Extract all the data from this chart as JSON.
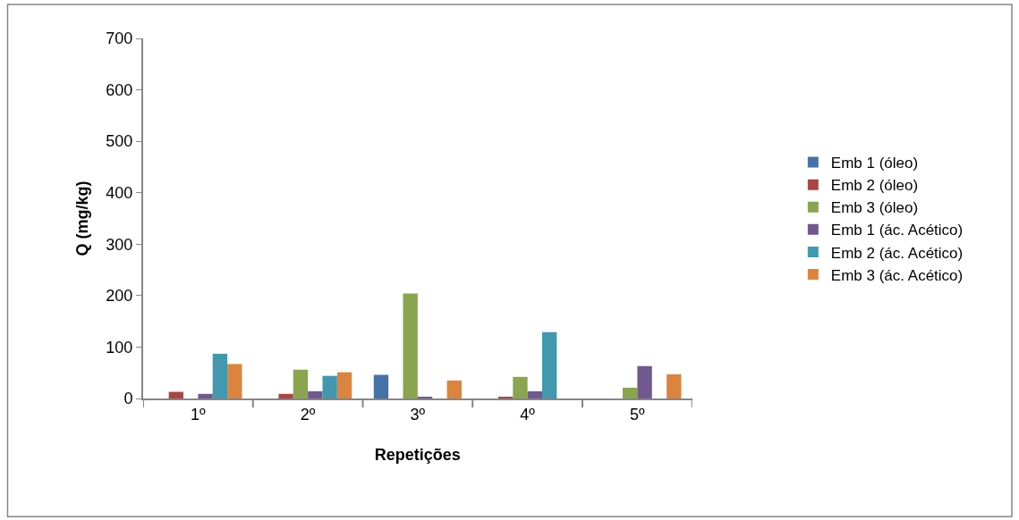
{
  "chart_data": {
    "type": "bar",
    "xlabel": "Repetições",
    "ylabel": "Q (mg/kg)",
    "categories": [
      "1º",
      "2º",
      "3º",
      "4º",
      "5º"
    ],
    "series": [
      {
        "name": "Emb 1 (óleo)",
        "color": "#4572a7",
        "values": [
          0,
          0,
          46,
          0,
          0
        ]
      },
      {
        "name": "Emb 2 (óleo)",
        "color": "#aa4643",
        "values": [
          13,
          9,
          0,
          2,
          0
        ]
      },
      {
        "name": "Emb 3 (óleo)",
        "color": "#89a54e",
        "values": [
          0,
          56,
          204,
          42,
          21
        ]
      },
      {
        "name": "Emb 1 (ác. Acético)",
        "color": "#71588f",
        "values": [
          9,
          14,
          2,
          14,
          63
        ]
      },
      {
        "name": "Emb 2 (ác. Acético)",
        "color": "#4198af",
        "values": [
          87,
          44,
          0,
          129,
          0
        ]
      },
      {
        "name": "Emb 3 (ác. Acético)",
        "color": "#db843d",
        "values": [
          67,
          51,
          35,
          0,
          47
        ]
      }
    ],
    "ylim": [
      0,
      700
    ],
    "yticks": [
      0,
      100,
      200,
      300,
      400,
      500,
      600,
      700
    ],
    "legend": "right"
  }
}
